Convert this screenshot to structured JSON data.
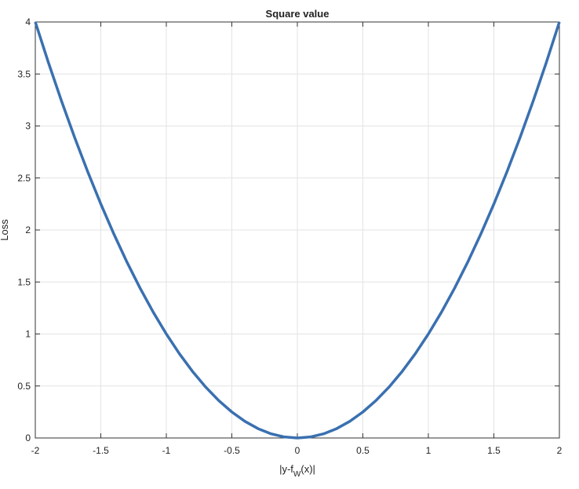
{
  "chart_data": {
    "type": "line",
    "title": "Square value",
    "xlabel": [
      "|y-f",
      "W",
      "(x)|"
    ],
    "ylabel": "Loss",
    "x": [
      -2,
      -1.9,
      -1.8,
      -1.7,
      -1.6,
      -1.5,
      -1.4,
      -1.3,
      -1.2,
      -1.1,
      -1,
      -0.9,
      -0.8,
      -0.7,
      -0.6,
      -0.5,
      -0.4,
      -0.3,
      -0.2,
      -0.1,
      0,
      0.1,
      0.2,
      0.3,
      0.4,
      0.5,
      0.6,
      0.7,
      0.8,
      0.9,
      1,
      1.1,
      1.2,
      1.3,
      1.4,
      1.5,
      1.6,
      1.7,
      1.8,
      1.9,
      2
    ],
    "series": [
      {
        "color": "#3a70b0",
        "values": [
          4,
          3.61,
          3.24,
          2.89,
          2.56,
          2.25,
          1.96,
          1.69,
          1.44,
          1.21,
          1,
          0.81,
          0.64,
          0.49,
          0.36,
          0.25,
          0.16,
          0.09,
          0.04,
          0.01,
          0,
          0.01,
          0.04,
          0.09,
          0.16,
          0.25,
          0.36,
          0.49,
          0.64,
          0.81,
          1,
          1.21,
          1.44,
          1.69,
          1.96,
          2.25,
          2.56,
          2.89,
          3.24,
          3.61,
          4
        ]
      }
    ],
    "xlim": [
      -2,
      2
    ],
    "xticks": [
      -2,
      -1.5,
      -1,
      -0.5,
      0,
      0.5,
      1,
      1.5,
      2
    ],
    "ylim": [
      0,
      4
    ],
    "yticks": [
      0,
      0.5,
      1,
      1.5,
      2,
      2.5,
      3,
      3.5,
      4
    ],
    "grid": true
  }
}
